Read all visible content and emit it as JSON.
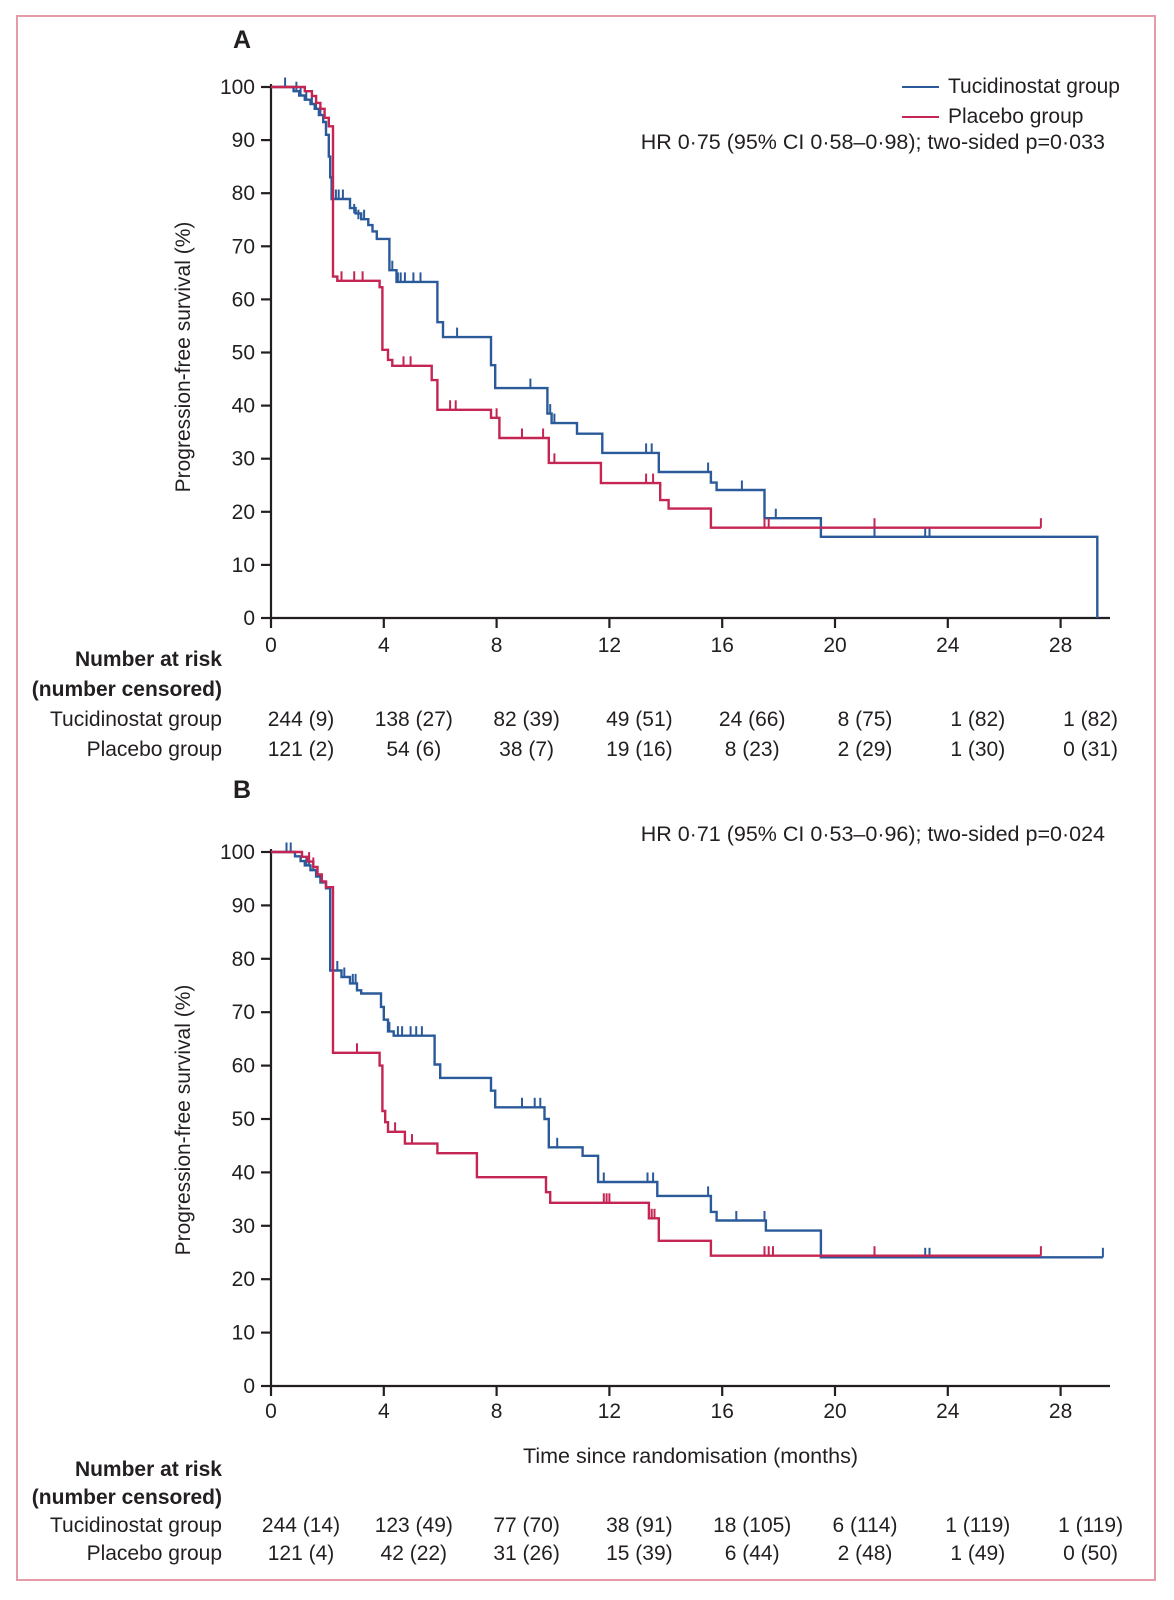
{
  "figure": {
    "border_color": "#e59ba8",
    "background": "#ffffff",
    "text_color": "#231f20"
  },
  "chart_data": [
    {
      "type": "line",
      "subtype": "kaplan-meier-step",
      "panel_label": "A",
      "ylabel": "Progression-free survival (%)",
      "xlabel": "",
      "annotation": "HR 0·75 (95% CI 0·58–0·98); two-sided p=0·033",
      "legend_position": "top-right",
      "legend": [
        {
          "name": "Tucidinostat group",
          "color": "#2a5a9a"
        },
        {
          "name": "Placebo group",
          "color": "#c42552"
        }
      ],
      "xlim": [
        0,
        29.6
      ],
      "ylim": [
        0,
        100
      ],
      "xticks": [
        0,
        4,
        8,
        12,
        16,
        20,
        24,
        28
      ],
      "yticks": [
        0,
        10,
        20,
        30,
        40,
        50,
        60,
        70,
        80,
        90,
        100
      ],
      "grid": false,
      "series": [
        {
          "name": "Tucidinostat group",
          "color": "#2a5a9a",
          "end_month": 29.3,
          "end_style": "drop_to_zero",
          "points": [
            [
              0,
              100
            ],
            [
              0.8,
              99.2
            ],
            [
              1.0,
              98.4
            ],
            [
              1.2,
              97.6
            ],
            [
              1.4,
              96.8
            ],
            [
              1.55,
              95.9
            ],
            [
              1.7,
              94.7
            ],
            [
              1.85,
              93.4
            ],
            [
              1.95,
              91.0
            ],
            [
              2.05,
              86.9
            ],
            [
              2.1,
              83.0
            ],
            [
              2.15,
              78.9
            ],
            [
              2.8,
              77.2
            ],
            [
              3.0,
              76.2
            ],
            [
              3.2,
              75.1
            ],
            [
              3.45,
              74.0
            ],
            [
              3.6,
              72.8
            ],
            [
              3.75,
              71.4
            ],
            [
              4.2,
              65.5
            ],
            [
              4.45,
              63.3
            ],
            [
              5.9,
              55.7
            ],
            [
              6.1,
              52.9
            ],
            [
              7.8,
              47.6
            ],
            [
              7.95,
              43.3
            ],
            [
              9.8,
              38.5
            ],
            [
              9.95,
              36.7
            ],
            [
              10.85,
              34.7
            ],
            [
              11.75,
              31.1
            ],
            [
              13.75,
              27.5
            ],
            [
              15.6,
              25.5
            ],
            [
              15.8,
              24.1
            ],
            [
              17.5,
              18.8
            ],
            [
              19.5,
              15.3
            ]
          ],
          "censors": [
            [
              0.5,
              100
            ],
            [
              0.9,
              99.2
            ],
            [
              1.05,
              98.4
            ],
            [
              1.25,
              97.6
            ],
            [
              1.45,
              96.8
            ],
            [
              1.6,
              95.9
            ],
            [
              1.75,
              94.7
            ],
            [
              2.3,
              78.9
            ],
            [
              2.4,
              78.9
            ],
            [
              2.55,
              78.9
            ],
            [
              2.95,
              76.2
            ],
            [
              3.1,
              75.1
            ],
            [
              3.3,
              75.1
            ],
            [
              4.3,
              65.5
            ],
            [
              4.5,
              63.3
            ],
            [
              4.6,
              63.3
            ],
            [
              4.75,
              63.3
            ],
            [
              5.05,
              63.3
            ],
            [
              5.3,
              63.3
            ],
            [
              6.6,
              52.9
            ],
            [
              9.2,
              43.3
            ],
            [
              9.9,
              38.5
            ],
            [
              10.05,
              36.7
            ],
            [
              13.3,
              31.1
            ],
            [
              13.5,
              31.1
            ],
            [
              15.5,
              27.5
            ],
            [
              16.7,
              24.1
            ],
            [
              17.9,
              18.8
            ],
            [
              21.4,
              15.3
            ],
            [
              23.2,
              15.3
            ],
            [
              23.35,
              15.3
            ]
          ]
        },
        {
          "name": "Placebo group",
          "color": "#c42552",
          "end_month": 27.3,
          "end_style": "tick",
          "points": [
            [
              0,
              100
            ],
            [
              1.2,
              99.2
            ],
            [
              1.45,
              98.3
            ],
            [
              1.6,
              97.0
            ],
            [
              1.75,
              95.9
            ],
            [
              1.9,
              94.2
            ],
            [
              2.05,
              92.6
            ],
            [
              2.2,
              64.3
            ],
            [
              2.35,
              63.5
            ],
            [
              3.85,
              62.3
            ],
            [
              3.95,
              50.5
            ],
            [
              4.15,
              48.6
            ],
            [
              4.3,
              47.5
            ],
            [
              5.7,
              44.8
            ],
            [
              5.9,
              39.2
            ],
            [
              7.8,
              37.7
            ],
            [
              8.1,
              33.9
            ],
            [
              9.85,
              29.2
            ],
            [
              11.7,
              25.4
            ],
            [
              13.8,
              22.2
            ],
            [
              14.1,
              20.6
            ],
            [
              15.6,
              17.0
            ]
          ],
          "censors": [
            [
              2.5,
              63.5
            ],
            [
              2.95,
              63.5
            ],
            [
              3.25,
              63.5
            ],
            [
              4.7,
              47.5
            ],
            [
              4.95,
              47.5
            ],
            [
              6.35,
              39.2
            ],
            [
              6.55,
              39.2
            ],
            [
              8.0,
              37.7
            ],
            [
              8.9,
              33.9
            ],
            [
              9.65,
              33.9
            ],
            [
              10.05,
              29.2
            ],
            [
              13.3,
              25.4
            ],
            [
              13.55,
              25.4
            ],
            [
              17.5,
              17.0
            ],
            [
              17.65,
              17.0
            ],
            [
              21.4,
              17.0
            ]
          ]
        }
      ],
      "risk_table": {
        "header": [
          "Number at risk",
          "(number censored)"
        ],
        "rows": [
          {
            "label": "Tucidinostat group",
            "values": [
              "244 (9)",
              "138 (27)",
              "82 (39)",
              "49 (51)",
              "24 (66)",
              "8 (75)",
              "1 (82)",
              "1 (82)"
            ]
          },
          {
            "label": "Placebo group",
            "values": [
              "121 (2)",
              "54 (6)",
              "38 (7)",
              "19 (16)",
              "8 (23)",
              "2 (29)",
              "1 (30)",
              "0 (31)"
            ]
          }
        ]
      }
    },
    {
      "type": "line",
      "subtype": "kaplan-meier-step",
      "panel_label": "B",
      "ylabel": "Progression-free survival (%)",
      "xlabel": "Time since randomisation (months)",
      "annotation": "HR 0·71 (95% CI 0·53–0·96); two-sided p=0·024",
      "legend": [],
      "xlim": [
        0,
        29.6
      ],
      "ylim": [
        0,
        100
      ],
      "xticks": [
        0,
        4,
        8,
        12,
        16,
        20,
        24,
        28
      ],
      "yticks": [
        0,
        10,
        20,
        30,
        40,
        50,
        60,
        70,
        80,
        90,
        100
      ],
      "grid": false,
      "series": [
        {
          "name": "Tucidinostat group",
          "color": "#2a5a9a",
          "end_month": 29.5,
          "end_style": "tick",
          "points": [
            [
              0,
              100
            ],
            [
              0.85,
              99.2
            ],
            [
              1.05,
              98.3
            ],
            [
              1.2,
              97.5
            ],
            [
              1.4,
              96.6
            ],
            [
              1.6,
              95.4
            ],
            [
              1.75,
              94.3
            ],
            [
              1.95,
              93.2
            ],
            [
              2.1,
              77.8
            ],
            [
              2.5,
              76.6
            ],
            [
              2.8,
              75.4
            ],
            [
              3.05,
              74.1
            ],
            [
              3.2,
              73.5
            ],
            [
              3.9,
              71.0
            ],
            [
              4.0,
              68.6
            ],
            [
              4.15,
              66.4
            ],
            [
              4.35,
              65.6
            ],
            [
              5.8,
              60.2
            ],
            [
              6.0,
              57.7
            ],
            [
              7.8,
              55.3
            ],
            [
              7.95,
              52.2
            ],
            [
              9.7,
              50.0
            ],
            [
              9.85,
              44.7
            ],
            [
              11.05,
              43.1
            ],
            [
              11.6,
              38.2
            ],
            [
              13.7,
              35.6
            ],
            [
              15.6,
              32.6
            ],
            [
              15.8,
              31.0
            ],
            [
              17.55,
              29.1
            ],
            [
              19.5,
              24.1
            ]
          ],
          "censors": [
            [
              0.55,
              100
            ],
            [
              0.7,
              100
            ],
            [
              1.25,
              97.5
            ],
            [
              1.35,
              97.5
            ],
            [
              1.5,
              96.6
            ],
            [
              2.2,
              77.8
            ],
            [
              2.35,
              77.8
            ],
            [
              2.6,
              76.6
            ],
            [
              2.9,
              75.4
            ],
            [
              3.0,
              75.4
            ],
            [
              4.2,
              66.4
            ],
            [
              4.5,
              65.6
            ],
            [
              4.65,
              65.6
            ],
            [
              4.95,
              65.6
            ],
            [
              5.15,
              65.6
            ],
            [
              5.35,
              65.6
            ],
            [
              8.9,
              52.2
            ],
            [
              9.35,
              52.2
            ],
            [
              9.55,
              52.2
            ],
            [
              10.15,
              44.7
            ],
            [
              11.8,
              38.2
            ],
            [
              13.35,
              38.2
            ],
            [
              13.55,
              38.2
            ],
            [
              15.5,
              35.6
            ],
            [
              16.5,
              31.0
            ],
            [
              17.5,
              31.0
            ],
            [
              21.4,
              24.1
            ],
            [
              23.2,
              24.1
            ],
            [
              23.35,
              24.1
            ]
          ]
        },
        {
          "name": "Placebo group",
          "color": "#c42552",
          "end_month": 27.3,
          "end_style": "tick",
          "points": [
            [
              0,
              100
            ],
            [
              1.1,
              99.1
            ],
            [
              1.3,
              98.2
            ],
            [
              1.5,
              97.2
            ],
            [
              1.65,
              95.8
            ],
            [
              1.8,
              94.5
            ],
            [
              1.95,
              93.4
            ],
            [
              2.2,
              62.4
            ],
            [
              3.85,
              60.0
            ],
            [
              3.95,
              51.5
            ],
            [
              4.05,
              49.4
            ],
            [
              4.15,
              47.6
            ],
            [
              4.75,
              45.4
            ],
            [
              5.9,
              43.6
            ],
            [
              7.3,
              39.1
            ],
            [
              9.75,
              36.3
            ],
            [
              9.9,
              34.3
            ],
            [
              13.4,
              31.4
            ],
            [
              13.75,
              27.2
            ],
            [
              15.6,
              24.4
            ]
          ],
          "censors": [
            [
              1.35,
              98.2
            ],
            [
              1.5,
              97.2
            ],
            [
              3.05,
              62.4
            ],
            [
              4.4,
              47.6
            ],
            [
              5.0,
              45.4
            ],
            [
              11.8,
              34.3
            ],
            [
              11.9,
              34.3
            ],
            [
              12.0,
              34.3
            ],
            [
              13.5,
              31.4
            ],
            [
              13.6,
              31.4
            ],
            [
              17.5,
              24.4
            ],
            [
              17.65,
              24.4
            ],
            [
              17.8,
              24.4
            ],
            [
              21.4,
              24.4
            ]
          ]
        }
      ],
      "risk_table": {
        "header": [
          "Number at risk",
          "(number censored)"
        ],
        "rows": [
          {
            "label": "Tucidinostat group",
            "values": [
              "244 (14)",
              "123 (49)",
              "77 (70)",
              "38 (91)",
              "18 (105)",
              "6 (114)",
              "1 (119)",
              "1 (119)"
            ]
          },
          {
            "label": "Placebo group",
            "values": [
              "121 (4)",
              "42 (22)",
              "31 (26)",
              "15 (39)",
              "6 (44)",
              "2 (48)",
              "1 (49)",
              "0 (50)"
            ]
          }
        ]
      }
    }
  ]
}
